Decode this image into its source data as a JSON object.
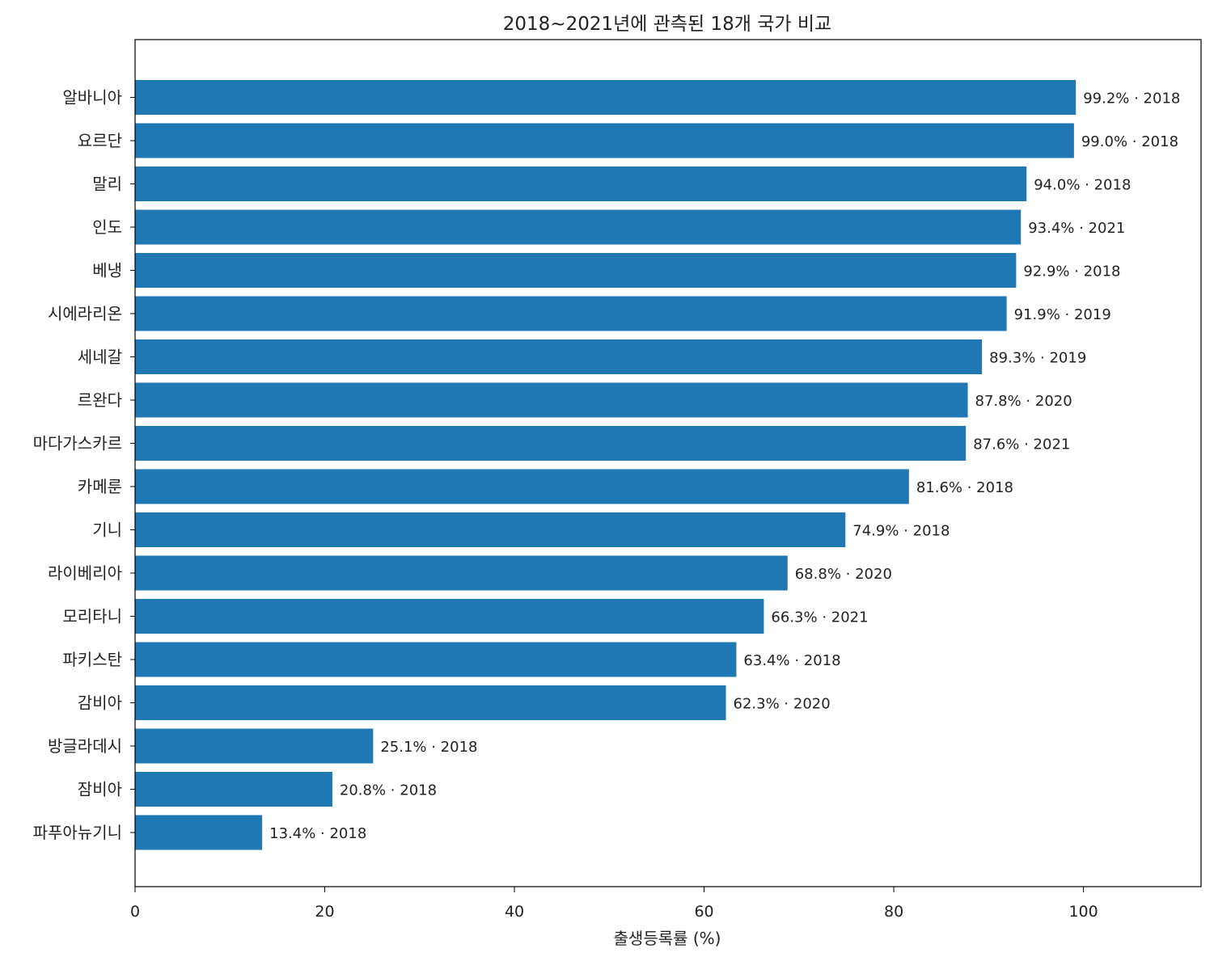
{
  "chart_data": {
    "type": "bar",
    "orientation": "horizontal",
    "title": "2018~2021년에 관측된 18개 국가 비교",
    "xlabel": "출생등록률 (%)",
    "ylabel": "",
    "xlim": [
      0,
      112.4
    ],
    "xticks": [
      0,
      20,
      40,
      60,
      80,
      100
    ],
    "grid": false,
    "bar_color": "#1f77b4",
    "categories": [
      "알바니아",
      "요르단",
      "말리",
      "인도",
      "베냉",
      "시에라리온",
      "세네갈",
      "르완다",
      "마다가스카르",
      "카메룬",
      "기니",
      "라이베리아",
      "모리타니",
      "파키스탄",
      "감비아",
      "방글라데시",
      "잠비아",
      "파푸아뉴기니"
    ],
    "values": [
      99.2,
      99.0,
      94.0,
      93.4,
      92.9,
      91.9,
      89.3,
      87.8,
      87.6,
      81.6,
      74.9,
      68.8,
      66.3,
      63.4,
      62.3,
      25.1,
      20.8,
      13.4
    ],
    "years": [
      2018,
      2018,
      2018,
      2021,
      2018,
      2019,
      2019,
      2020,
      2021,
      2018,
      2018,
      2020,
      2021,
      2018,
      2020,
      2018,
      2018,
      2018
    ],
    "data_labels": [
      "99.2% · 2018",
      "99.0% · 2018",
      "94.0% · 2018",
      "93.4% · 2021",
      "92.9% · 2018",
      "91.9% · 2019",
      "89.3% · 2019",
      "87.8% · 2020",
      "87.6% · 2021",
      "81.6% · 2018",
      "74.9% · 2018",
      "68.8% · 2020",
      "66.3% · 2021",
      "63.4% · 2018",
      "62.3% · 2020",
      "25.1% · 2018",
      "20.8% · 2018",
      "13.4% · 2018"
    ]
  }
}
